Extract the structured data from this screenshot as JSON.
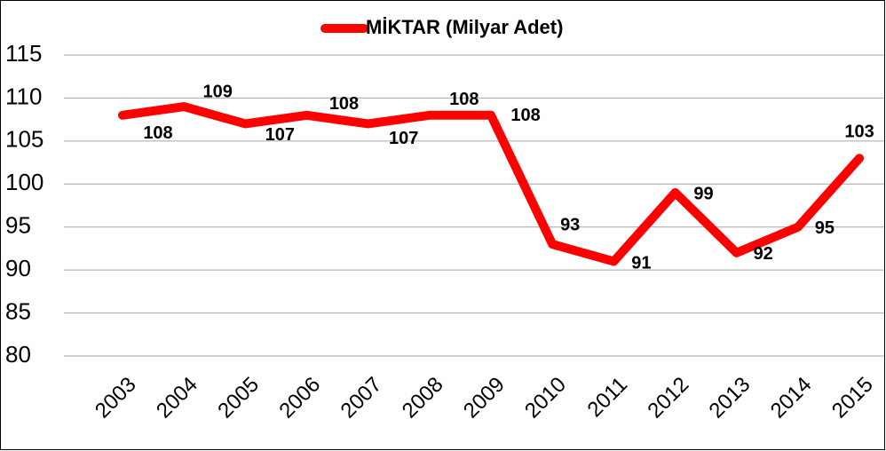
{
  "chart_data": {
    "type": "line",
    "legend": "MİKTAR (Milyar Adet)",
    "categories": [
      "2003",
      "2004",
      "2005",
      "2006",
      "2007",
      "2008",
      "2009",
      "2010",
      "2011",
      "2012",
      "2013",
      "2014",
      "2015"
    ],
    "series": [
      {
        "name": "MİKTAR (Milyar Adet)",
        "color": "#ff0000",
        "values": [
          108,
          109,
          107,
          108,
          107,
          108,
          108,
          93,
          91,
          99,
          92,
          95,
          103
        ]
      }
    ],
    "ylim": [
      80,
      115
    ],
    "yticks": [
      80,
      85,
      90,
      95,
      100,
      105,
      110,
      115
    ],
    "grid": true,
    "legend_position": "top"
  }
}
